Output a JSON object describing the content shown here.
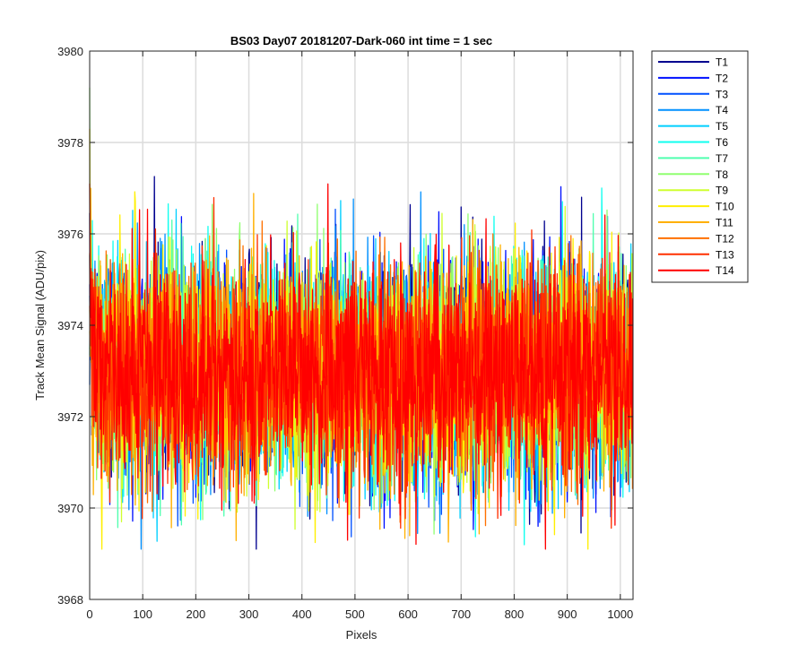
{
  "chart_data": {
    "type": "line",
    "title": "BS03 Day07 20181207-Dark-060 int time = 1 sec",
    "xlabel": "Pixels",
    "ylabel": "Track Mean Signal (ADU/pix)",
    "xlim": [
      0,
      1024
    ],
    "ylim": [
      3968,
      3980
    ],
    "xticks": [
      0,
      100,
      200,
      300,
      400,
      500,
      600,
      700,
      800,
      900,
      1000
    ],
    "yticks": [
      3968,
      3970,
      3972,
      3974,
      3976,
      3978,
      3980
    ],
    "grid": true,
    "legend_position": "outside-right",
    "signal": {
      "mean": 3973.0,
      "noise_std": 1.2,
      "approx_range": [
        3969.1,
        3979.2
      ],
      "start_values": {
        "T8": 3979.2,
        "T11": 3978.3,
        "T14": 3977.1
      }
    },
    "series": [
      {
        "name": "T1",
        "color": "#00008f"
      },
      {
        "name": "T2",
        "color": "#0010ff"
      },
      {
        "name": "T3",
        "color": "#0050ff"
      },
      {
        "name": "T4",
        "color": "#0090ff"
      },
      {
        "name": "T5",
        "color": "#00cfff"
      },
      {
        "name": "T6",
        "color": "#10ffef"
      },
      {
        "name": "T7",
        "color": "#50ffaf"
      },
      {
        "name": "T8",
        "color": "#90ff70"
      },
      {
        "name": "T9",
        "color": "#cfff30"
      },
      {
        "name": "T10",
        "color": "#ffef00"
      },
      {
        "name": "T11",
        "color": "#ffb000"
      },
      {
        "name": "T12",
        "color": "#ff7000"
      },
      {
        "name": "T13",
        "color": "#ff3000"
      },
      {
        "name": "T14",
        "color": "#ff0000"
      }
    ]
  }
}
